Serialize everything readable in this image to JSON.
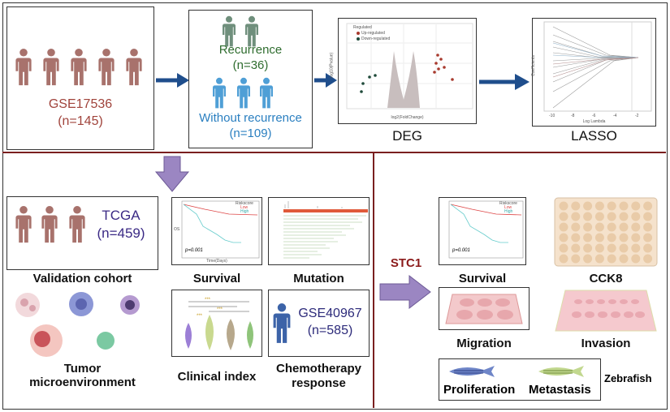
{
  "top": {
    "discovery": {
      "dataset": "GSE17536",
      "n": "(n=145)",
      "color": "#a0433b"
    },
    "groups": {
      "recurrence": "Recurrence",
      "recurrence_n": "(n=36)",
      "recurrence_color": "#2f6d2f",
      "no_recurrence": "Without recurrence",
      "no_recurrence_n": "(n=109)",
      "no_recurrence_color": "#2a7fc0"
    },
    "deg": {
      "label": "DEG",
      "legend_title": "Regulated",
      "up": "Up-regulated",
      "down": "Down-regulated",
      "xlabel": "log2(FoldChange)",
      "ylabel": "-log10(Pvalue)"
    },
    "lasso": {
      "label": "LASSO",
      "xlabel": "Log Lambda",
      "ylabel": "Coefficients",
      "xticks": [
        "-10",
        "-8",
        "-6",
        "-4",
        "-2"
      ]
    }
  },
  "validation": {
    "cohort": "TCGA",
    "n": "(n=459)",
    "label": "Validation cohort",
    "color": "#3b2a85",
    "survival": {
      "label": "Survival",
      "pvalue": "p=0.001",
      "legend_title": "Riskscore",
      "low": "Low",
      "high": "High",
      "xlabel": "Time(Days)",
      "ylabel": "OS"
    },
    "mutation": {
      "label": "Mutation"
    },
    "tme": {
      "label_line1": "Tumor",
      "label_line2": "microenvironment"
    },
    "clinical": {
      "label": "Clinical index"
    },
    "chemo": {
      "dataset": "GSE40967",
      "n": "(n=585)",
      "label_line1": "Chemotherapy",
      "label_line2": "response"
    }
  },
  "stc1": {
    "gene": "STC1",
    "gene_color": "#8b1a1a",
    "survival": {
      "label": "Survival",
      "pvalue": "p=0.001",
      "legend_title": "Riskscore",
      "low": "Low",
      "high": "High"
    },
    "cck8": "CCK8",
    "migration": "Migration",
    "invasion": "Invasion",
    "zebrafish": {
      "label": "Zebrafish",
      "proliferation": "Proliferation",
      "metastasis": "Metastasis"
    }
  },
  "colors": {
    "arrow": "#1f4e8c",
    "purple_arrow": "#9b86c2",
    "divider": "#7a1f1f"
  }
}
